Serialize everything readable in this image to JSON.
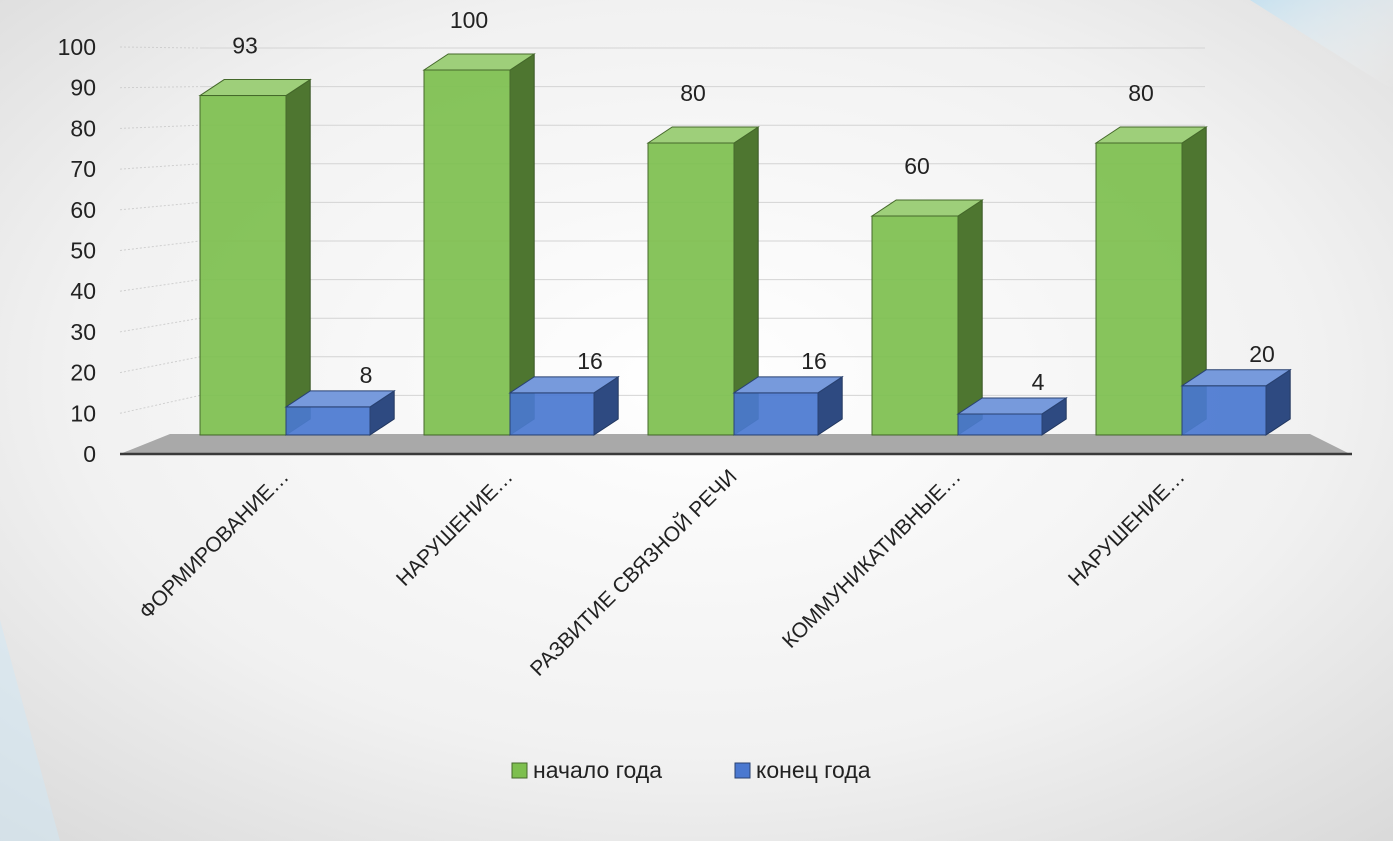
{
  "chart_data": {
    "type": "bar",
    "title": "",
    "xlabel": "",
    "ylabel": "",
    "ylim": [
      0,
      100
    ],
    "yticks": [
      0,
      10,
      20,
      30,
      40,
      50,
      60,
      70,
      80,
      90,
      100
    ],
    "categories": [
      "ФОРМИРОВАНИЕ…",
      "НАРУШЕНИЕ…",
      "РАЗВИТИЕ СВЯЗНОЙ РЕЧИ",
      "КОММУНИКАТИВНЫЕ…",
      "НАРУШЕНИЕ…"
    ],
    "series": [
      {
        "name": "начало года",
        "values": [
          93,
          100,
          80,
          60,
          80
        ],
        "color": "#7dbf4e"
      },
      {
        "name": "конец года",
        "values": [
          8,
          16,
          16,
          4,
          20
        ],
        "color": "#4a78d0"
      }
    ],
    "style": "3d-column",
    "grid": true,
    "legend": "bottom"
  }
}
